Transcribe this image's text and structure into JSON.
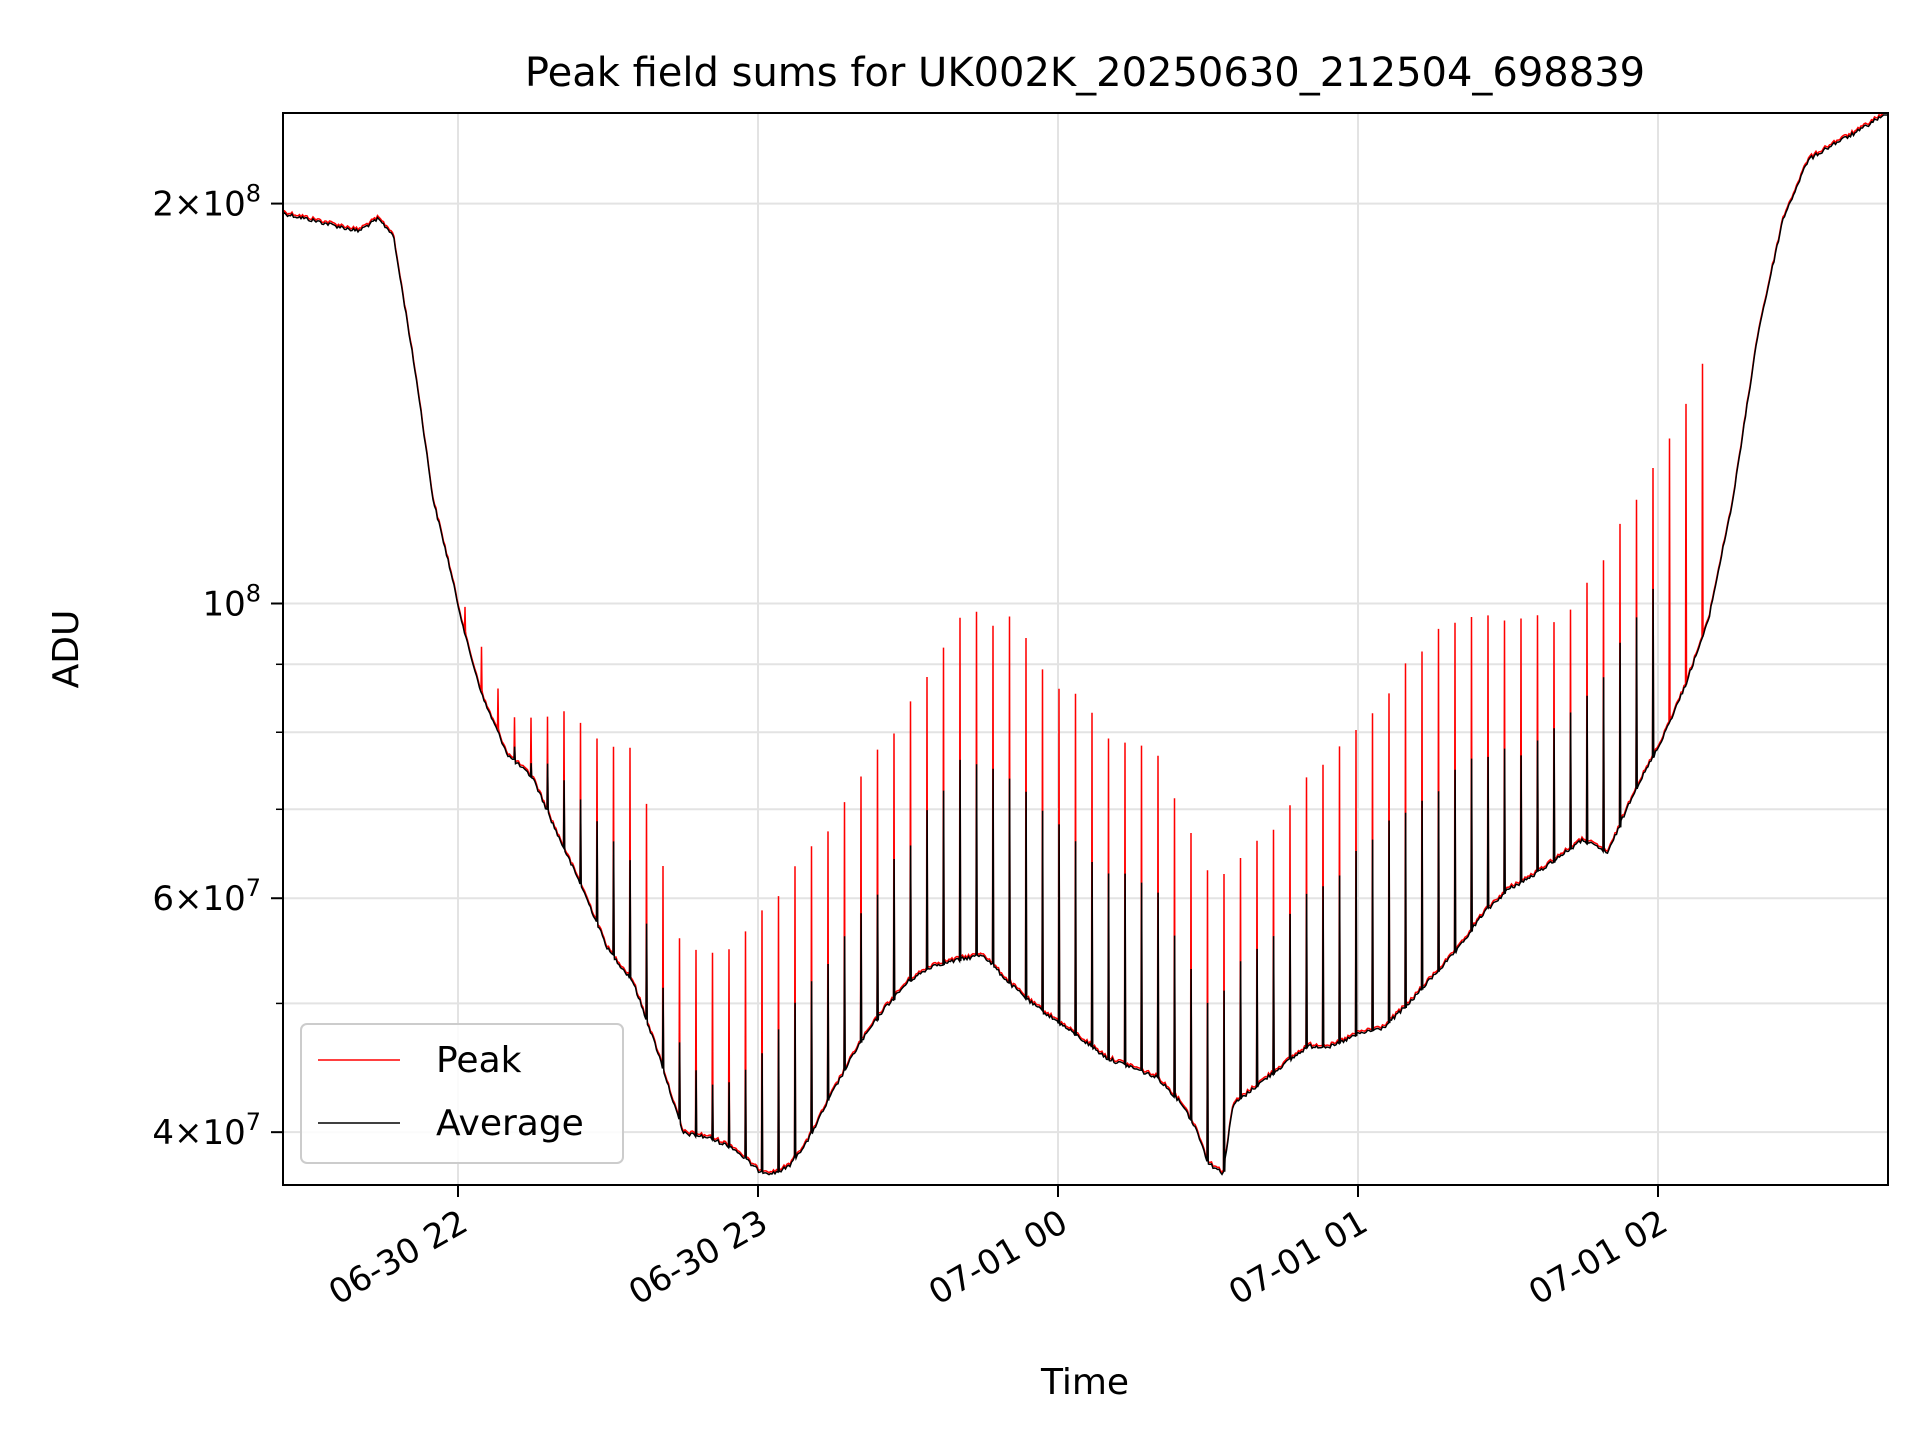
{
  "chart_data": {
    "type": "line",
    "title": "Peak field sums for UK002K_20250630_212504_698839",
    "xlabel": "Time",
    "ylabel": "ADU",
    "y_scale": "log",
    "ylim": [
      36500000,
      234000000
    ],
    "xlim": [
      "2025-06-30 21:25",
      "2025-07-01 02:46"
    ],
    "x_ticks": [
      {
        "label": "06-30 22",
        "time": "2025-06-30 22:00"
      },
      {
        "label": "06-30 23",
        "time": "2025-06-30 23:00"
      },
      {
        "label": "07-01 00",
        "time": "2025-07-01 00:00"
      },
      {
        "label": "07-01 01",
        "time": "2025-07-01 01:00"
      },
      {
        "label": "07-01 02",
        "time": "2025-07-01 02:00"
      }
    ],
    "y_ticks": [
      {
        "value": 40000000,
        "mantissa": "4",
        "exponent": "7"
      },
      {
        "value": 60000000,
        "mantissa": "6",
        "exponent": "7"
      },
      {
        "value": 100000000,
        "mantissa": "",
        "exponent": "8"
      },
      {
        "value": 200000000,
        "mantissa": "2",
        "exponent": "8"
      }
    ],
    "y_minor_ticks": [
      50000000,
      70000000,
      80000000,
      90000000
    ],
    "grid": true,
    "legend_position": "lower left",
    "series": [
      {
        "name": "Peak",
        "color": "#ff0000"
      },
      {
        "name": "Average",
        "color": "#000000"
      }
    ],
    "baseline": {
      "x": [
        "2025-06-30 21:25",
        "2025-06-30 21:35",
        "2025-06-30 21:40",
        "2025-06-30 21:44",
        "2025-06-30 21:47",
        "2025-06-30 21:50",
        "2025-06-30 21:52",
        "2025-06-30 21:55",
        "2025-06-30 21:58",
        "2025-06-30 22:00",
        "2025-06-30 22:02",
        "2025-06-30 22:05",
        "2025-06-30 22:10",
        "2025-06-30 22:15",
        "2025-06-30 22:20",
        "2025-06-30 22:25",
        "2025-06-30 22:30",
        "2025-06-30 22:35",
        "2025-06-30 22:40",
        "2025-06-30 22:45",
        "2025-06-30 22:50",
        "2025-06-30 22:55",
        "2025-06-30 23:00",
        "2025-06-30 23:03",
        "2025-06-30 23:06",
        "2025-06-30 23:10",
        "2025-06-30 23:15",
        "2025-06-30 23:20",
        "2025-06-30 23:25",
        "2025-06-30 23:30",
        "2025-06-30 23:35",
        "2025-06-30 23:40",
        "2025-06-30 23:45",
        "2025-06-30 23:50",
        "2025-06-30 23:55",
        "2025-07-01 00:00",
        "2025-07-01 00:05",
        "2025-07-01 00:10",
        "2025-07-01 00:15",
        "2025-07-01 00:20",
        "2025-07-01 00:25",
        "2025-07-01 00:28",
        "2025-07-01 00:30",
        "2025-07-01 00:33",
        "2025-07-01 00:35",
        "2025-07-01 00:40",
        "2025-07-01 00:45",
        "2025-07-01 00:50",
        "2025-07-01 00:55",
        "2025-07-01 01:00",
        "2025-07-01 01:05",
        "2025-07-01 01:10",
        "2025-07-01 01:15",
        "2025-07-01 01:20",
        "2025-07-01 01:25",
        "2025-07-01 01:30",
        "2025-07-01 01:35",
        "2025-07-01 01:40",
        "2025-07-01 01:45",
        "2025-07-01 01:50",
        "2025-07-01 01:55",
        "2025-07-01 02:00",
        "2025-07-01 02:05",
        "2025-07-01 02:10",
        "2025-07-01 02:15",
        "2025-07-01 02:20",
        "2025-07-01 02:25",
        "2025-07-01 02:30",
        "2025-07-01 02:35",
        "2025-07-01 02:40",
        "2025-07-01 02:46"
      ],
      "y": [
        197000000,
        193000000,
        191000000,
        195000000,
        190000000,
        162000000,
        145000000,
        120000000,
        108000000,
        100000000,
        93000000,
        85000000,
        77000000,
        74000000,
        67000000,
        61000000,
        55000000,
        52000000,
        46000000,
        40000000,
        39700000,
        39000000,
        37500000,
        37300000,
        37700000,
        39500000,
        43000000,
        46500000,
        49500000,
        52000000,
        53500000,
        54000000,
        54500000,
        52000000,
        50000000,
        48500000,
        47000000,
        45500000,
        44800000,
        44000000,
        42000000,
        40000000,
        38000000,
        37300000,
        42000000,
        43500000,
        45000000,
        46500000,
        46500000,
        47500000,
        48000000,
        50000000,
        52500000,
        55000000,
        58500000,
        61000000,
        62500000,
        64500000,
        66500000,
        65000000,
        72000000,
        78000000,
        86000000,
        97000000,
        120000000,
        160000000,
        195000000,
        216000000,
        222000000,
        227000000,
        235000000
      ],
      "peak_above": [
        {
          "x": "2025-06-30 21:55",
          "y": 112000000
        },
        {
          "x": "2025-06-30 22:10",
          "y": 83000000
        },
        {
          "x": "2025-06-30 22:20",
          "y": 83000000
        },
        {
          "x": "2025-06-30 22:35",
          "y": 77000000
        },
        {
          "x": "2025-06-30 22:45",
          "y": 55000000
        },
        {
          "x": "2025-06-30 22:55",
          "y": 55000000
        },
        {
          "x": "2025-06-30 23:20",
          "y": 73000000
        },
        {
          "x": "2025-06-30 23:30",
          "y": 84000000
        },
        {
          "x": "2025-06-30 23:40",
          "y": 98000000
        },
        {
          "x": "2025-06-30 23:50",
          "y": 97000000
        },
        {
          "x": "2025-07-01 00:00",
          "y": 87000000
        },
        {
          "x": "2025-07-01 00:10",
          "y": 80000000
        },
        {
          "x": "2025-07-01 00:20",
          "y": 76000000
        },
        {
          "x": "2025-07-01 00:30",
          "y": 62000000
        },
        {
          "x": "2025-07-01 00:40",
          "y": 66000000
        },
        {
          "x": "2025-07-01 00:50",
          "y": 74000000
        },
        {
          "x": "2025-07-01 01:00",
          "y": 80000000
        },
        {
          "x": "2025-07-01 01:10",
          "y": 90000000
        },
        {
          "x": "2025-07-01 01:20",
          "y": 98000000
        },
        {
          "x": "2025-07-01 01:30",
          "y": 98000000
        },
        {
          "x": "2025-07-01 01:40",
          "y": 97000000
        },
        {
          "x": "2025-07-01 01:50",
          "y": 110000000
        },
        {
          "x": "2025-07-01 02:00",
          "y": 128000000
        },
        {
          "x": "2025-07-01 02:10",
          "y": 155000000
        }
      ],
      "average_above": [
        {
          "x": "2025-06-30 22:10",
          "y": 78000000
        },
        {
          "x": "2025-06-30 22:20",
          "y": 75000000
        },
        {
          "x": "2025-06-30 22:35",
          "y": 63000000
        },
        {
          "x": "2025-06-30 22:45",
          "y": 45000000
        },
        {
          "x": "2025-06-30 22:55",
          "y": 43000000
        },
        {
          "x": "2025-06-30 23:20",
          "y": 58000000
        },
        {
          "x": "2025-06-30 23:30",
          "y": 66000000
        },
        {
          "x": "2025-06-30 23:40",
          "y": 76000000
        },
        {
          "x": "2025-06-30 23:50",
          "y": 74000000
        },
        {
          "x": "2025-07-01 00:00",
          "y": 68000000
        },
        {
          "x": "2025-07-01 00:10",
          "y": 63000000
        },
        {
          "x": "2025-07-01 00:20",
          "y": 60000000
        },
        {
          "x": "2025-07-01 00:30",
          "y": 50000000
        },
        {
          "x": "2025-07-01 00:40",
          "y": 55000000
        },
        {
          "x": "2025-07-01 00:50",
          "y": 60000000
        },
        {
          "x": "2025-07-01 01:00",
          "y": 65000000
        },
        {
          "x": "2025-07-01 01:10",
          "y": 70000000
        },
        {
          "x": "2025-07-01 01:20",
          "y": 75000000
        },
        {
          "x": "2025-07-01 01:30",
          "y": 77000000
        },
        {
          "x": "2025-07-01 01:40",
          "y": 80000000
        },
        {
          "x": "2025-07-01 01:50",
          "y": 90000000
        },
        {
          "x": "2025-07-01 02:00",
          "y": 105000000
        }
      ]
    }
  }
}
